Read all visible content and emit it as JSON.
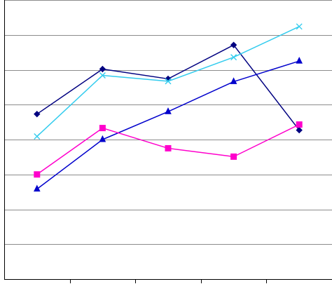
{
  "chart_data": {
    "type": "line",
    "title": "",
    "xlabel": "",
    "ylabel": "",
    "x": [
      1,
      2,
      3,
      4,
      5
    ],
    "xlim": [
      0.5,
      5.5
    ],
    "ylim": [
      0,
      8
    ],
    "grid": "horizontal",
    "legend": "none",
    "series": [
      {
        "color": "#000080",
        "marker": "diamond",
        "values": [
          4.73,
          6.02,
          5.74,
          6.71,
          4.27
        ]
      },
      {
        "color": "#33CCEE",
        "marker": "x",
        "values": [
          4.09,
          5.84,
          5.67,
          6.36,
          7.24
        ]
      },
      {
        "color": "#0000CC",
        "marker": "triangle",
        "values": [
          2.58,
          4.0,
          4.8,
          5.66,
          6.25
        ]
      },
      {
        "color": "#FF00CC",
        "marker": "square",
        "values": [
          3.0,
          4.33,
          3.75,
          3.51,
          4.43
        ]
      }
    ]
  }
}
